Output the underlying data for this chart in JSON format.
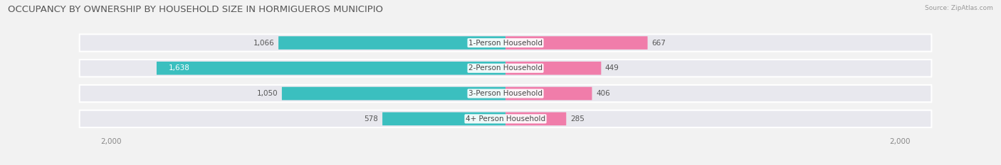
{
  "title": "OCCUPANCY BY OWNERSHIP BY HOUSEHOLD SIZE IN HORMIGUEROS MUNICIPIO",
  "source": "Source: ZipAtlas.com",
  "categories": [
    "1-Person Household",
    "2-Person Household",
    "3-Person Household",
    "4+ Person Household"
  ],
  "owner_values": [
    1066,
    1638,
    1050,
    578
  ],
  "renter_values": [
    667,
    449,
    406,
    285
  ],
  "owner_color": "#3BBFBF",
  "renter_color": "#F07DAA",
  "axis_max": 2000,
  "background_color": "#f2f2f2",
  "bar_bg_color": "#e8e8ee",
  "title_fontsize": 9.5,
  "label_fontsize": 7.5,
  "value_fontsize": 7.5,
  "tick_fontsize": 7.5,
  "fig_width": 14.06,
  "fig_height": 2.33,
  "dpi": 100
}
